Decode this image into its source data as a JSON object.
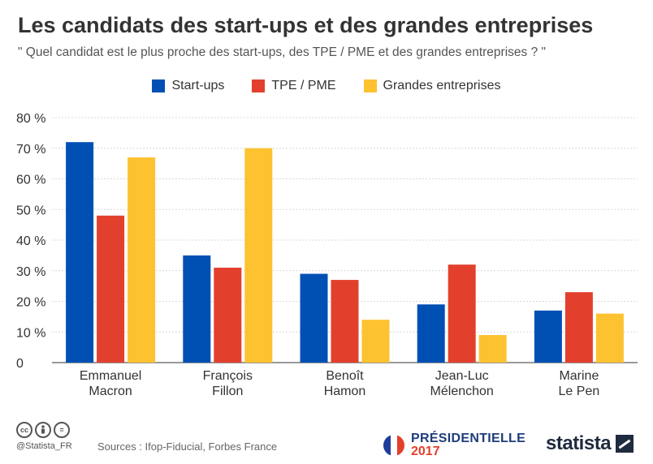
{
  "header": {
    "title": "Les candidats des start-ups et des grandes entreprises",
    "subtitle": "\" Quel candidat est le plus proche des start-ups, des TPE / PME et des grandes entreprises ? \""
  },
  "chart_data": {
    "type": "bar",
    "title": "Les candidats des start-ups et des grandes entreprises",
    "subtitle": "\" Quel candidat est le plus proche des start-ups, des TPE / PME et des grandes entreprises ? \"",
    "categories": [
      [
        "Emmanuel",
        "Macron"
      ],
      [
        "François",
        "Fillon"
      ],
      [
        "Benoît",
        "Hamon"
      ],
      [
        "Jean-Luc",
        "Mélenchon"
      ],
      [
        "Marine",
        "Le Pen"
      ]
    ],
    "series": [
      {
        "name": "Start-ups",
        "color": "#0050b4",
        "values": [
          72,
          35,
          29,
          19,
          17
        ]
      },
      {
        "name": "TPE / PME",
        "color": "#e2402d",
        "values": [
          48,
          31,
          27,
          32,
          23
        ]
      },
      {
        "name": "Grandes entreprises",
        "color": "#fdc230",
        "values": [
          67,
          70,
          14,
          9,
          16
        ]
      }
    ],
    "yticks": [
      "0",
      "10 %",
      "20 %",
      "30 %",
      "40 %",
      "50 %",
      "60 %",
      "70 %",
      "80 %"
    ],
    "ylim": [
      0,
      80
    ],
    "grid": true,
    "legend": "top-center"
  },
  "footer": {
    "license_icons": [
      "cc",
      "by",
      "="
    ],
    "handle": "@Statista_FR",
    "sources": "Sources : Ifop-Fiducial, Forbes France",
    "badge_line1": "PRÉSIDENTIELLE",
    "badge_line2": "2017",
    "brand": "statista",
    "flag_colors": [
      "#1f3d9a",
      "#ffffff",
      "#e2402d"
    ]
  }
}
